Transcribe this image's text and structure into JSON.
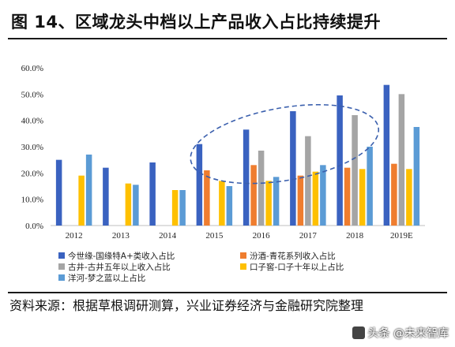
{
  "figure": {
    "title": "图 14、区域龙头中档以上产品收入占比持续提升",
    "source": "资料来源：根据草根调研测算，兴业证券经济与金融研究院整理",
    "watermark": "头条 @未来智库"
  },
  "colors": {
    "s1": "#3a62c0",
    "s2": "#ef7d2f",
    "s3": "#a5a5a5",
    "s4": "#fec000",
    "s5": "#5b9bd5",
    "ellipse": "#3a5fad"
  },
  "chart_data": {
    "type": "bar",
    "categories": [
      "2012",
      "2013",
      "2014",
      "2015",
      "2016",
      "2017",
      "2018",
      "2019E"
    ],
    "ylim": [
      0,
      60
    ],
    "yticks": [
      "0.0%",
      "10.0%",
      "20.0%",
      "30.0%",
      "40.0%",
      "50.0%",
      "60.0%"
    ],
    "series": [
      {
        "name": "今世缘-国缘特A+类收入占比",
        "values": [
          25,
          22,
          24,
          31,
          36.5,
          43.5,
          49.5,
          53.5
        ]
      },
      {
        "name": "汾酒-青花系列收入占比",
        "values": [
          null,
          null,
          null,
          21,
          23,
          19,
          22,
          23.5
        ]
      },
      {
        "name": "古井-古井五年以上收入占比",
        "values": [
          null,
          null,
          null,
          null,
          28.5,
          34,
          42,
          50
        ]
      },
      {
        "name": "口子窖-口子十年以上占比",
        "values": [
          19,
          16,
          13.5,
          17,
          17,
          20.5,
          21.5,
          21.5
        ]
      },
      {
        "name": "洋河-梦之蓝以上占比",
        "values": [
          27,
          15.5,
          13.5,
          15,
          18.5,
          23,
          30,
          37.5
        ]
      }
    ],
    "annotation": "dashed ellipse around 2015-2018",
    "grid": false,
    "legend_position": "bottom"
  }
}
